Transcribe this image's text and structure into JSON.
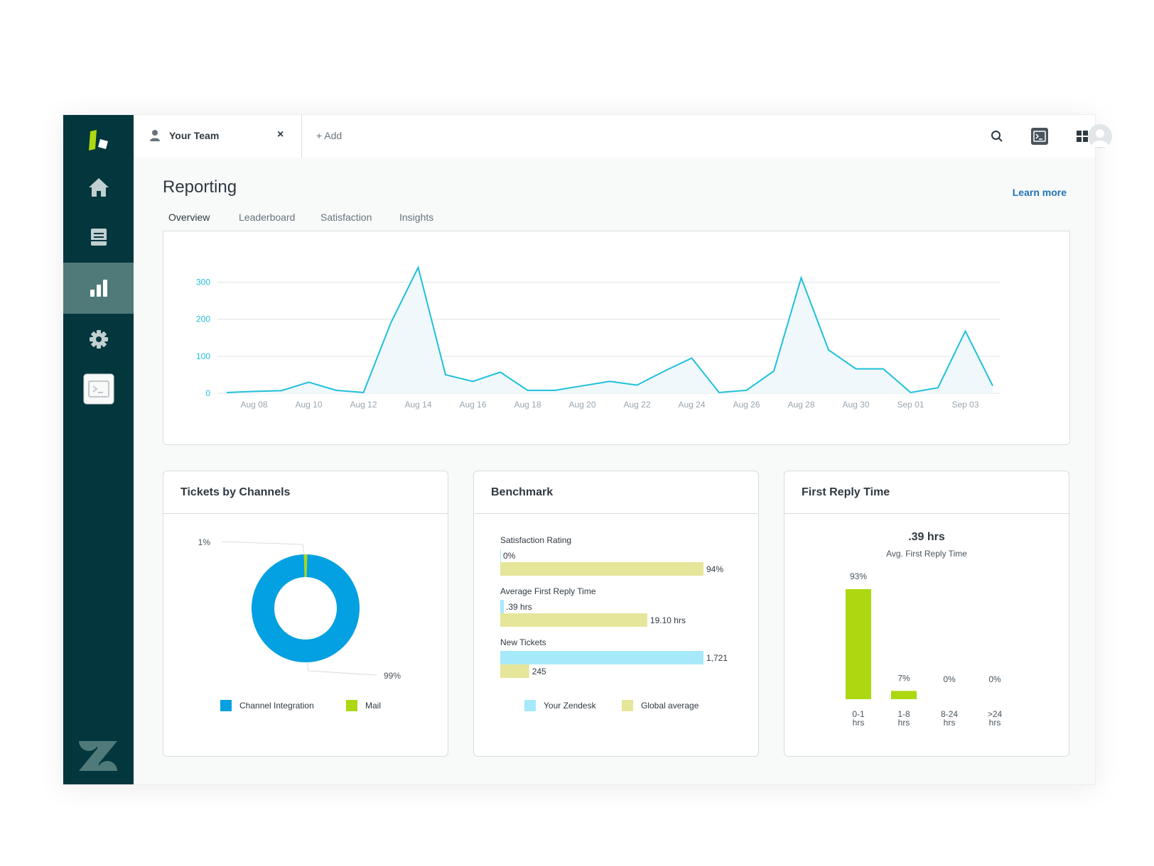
{
  "topbar": {
    "open_tab": "Your Team",
    "close_symbol": "×",
    "add_tab": "+ Add"
  },
  "header": {
    "title": "Reporting",
    "learn_more": "Learn more"
  },
  "tabs": [
    "Overview",
    "Leaderboard",
    "Satisfaction",
    "Insights"
  ],
  "sidebar": {
    "items": [
      "home-icon",
      "views-icon",
      "reporting-icon",
      "settings-icon",
      "apps-icon"
    ],
    "active": "reporting-icon"
  },
  "cards": {
    "channels_title": "Tickets by Channels",
    "benchmark_title": "Benchmark",
    "reply_title": "First Reply Time"
  },
  "colors": {
    "line": "#1fc0da",
    "channel_integration": "#03a0e2",
    "mail": "#add711",
    "your_zendesk": "#a6e9fb",
    "global_average": "#e5e69a",
    "sidebar": "#03363d",
    "accent": "#1f73b7"
  },
  "chart_data": [
    {
      "type": "line",
      "title": "",
      "x": [
        "Aug 07",
        "Aug 08",
        "Aug 09",
        "Aug 10",
        "Aug 11",
        "Aug 12",
        "Aug 13",
        "Aug 14",
        "Aug 15",
        "Aug 16",
        "Aug 17",
        "Aug 18",
        "Aug 19",
        "Aug 20",
        "Aug 21",
        "Aug 22",
        "Aug 23",
        "Aug 24",
        "Aug 25",
        "Aug 26",
        "Aug 27",
        "Aug 28",
        "Aug 29",
        "Aug 30",
        "Aug 31",
        "Sep 01",
        "Sep 02",
        "Sep 03",
        "Sep 04"
      ],
      "x_tick_labels": [
        "Aug 08",
        "Aug 10",
        "Aug 12",
        "Aug 14",
        "Aug 16",
        "Aug 18",
        "Aug 20",
        "Aug 22",
        "Aug 24",
        "Aug 26",
        "Aug 28",
        "Aug 30",
        "Sep 01",
        "Sep 03"
      ],
      "values": [
        2,
        5,
        7,
        30,
        8,
        2,
        190,
        340,
        50,
        32,
        57,
        8,
        8,
        20,
        32,
        22,
        60,
        95,
        2,
        8,
        60,
        312,
        117,
        66,
        66,
        2,
        15,
        168,
        20
      ],
      "ylim": [
        0,
        340
      ],
      "y_ticks": [
        0,
        100,
        200,
        300
      ],
      "xlabel": "",
      "ylabel": "",
      "grid": true
    },
    {
      "type": "pie",
      "title": "Tickets by Channels",
      "categories": [
        "Channel Integration",
        "Mail"
      ],
      "values": [
        99,
        1
      ],
      "labels": [
        "99%",
        "1%"
      ]
    },
    {
      "type": "bar",
      "title": "Benchmark",
      "orientation": "horizontal",
      "groups": [
        {
          "label": "Satisfaction Rating",
          "your_zendesk": 0,
          "your_label": "0%",
          "global_average": 94,
          "global_label": "94%",
          "scale_max": 94
        },
        {
          "label": "Average First Reply Time",
          "your_zendesk": 0.39,
          "your_label": ".39 hrs",
          "global_average": 19.1,
          "global_label": "19.10 hrs",
          "scale_max": 26.4
        },
        {
          "label": "New Tickets",
          "your_zendesk": 1721,
          "your_label": "1,721",
          "global_average": 245,
          "global_label": "245",
          "scale_max": 1721
        }
      ],
      "series": [
        {
          "name": "Your Zendesk"
        },
        {
          "name": "Global average"
        }
      ]
    },
    {
      "type": "bar",
      "title": "First Reply Time",
      "summary_value": ".39 hrs",
      "summary_label": "Avg. First Reply Time",
      "categories": [
        "0-1 hrs",
        "1-8 hrs",
        "8-24 hrs",
        ">24 hrs"
      ],
      "category_lines": [
        [
          "0-1",
          "hrs"
        ],
        [
          "1-8",
          "hrs"
        ],
        [
          "8-24",
          "hrs"
        ],
        [
          ">24",
          "hrs"
        ]
      ],
      "values": [
        93,
        7,
        0,
        0
      ],
      "labels": [
        "93%",
        "7%",
        "0%",
        "0%"
      ],
      "ylim": [
        0,
        93
      ]
    }
  ]
}
